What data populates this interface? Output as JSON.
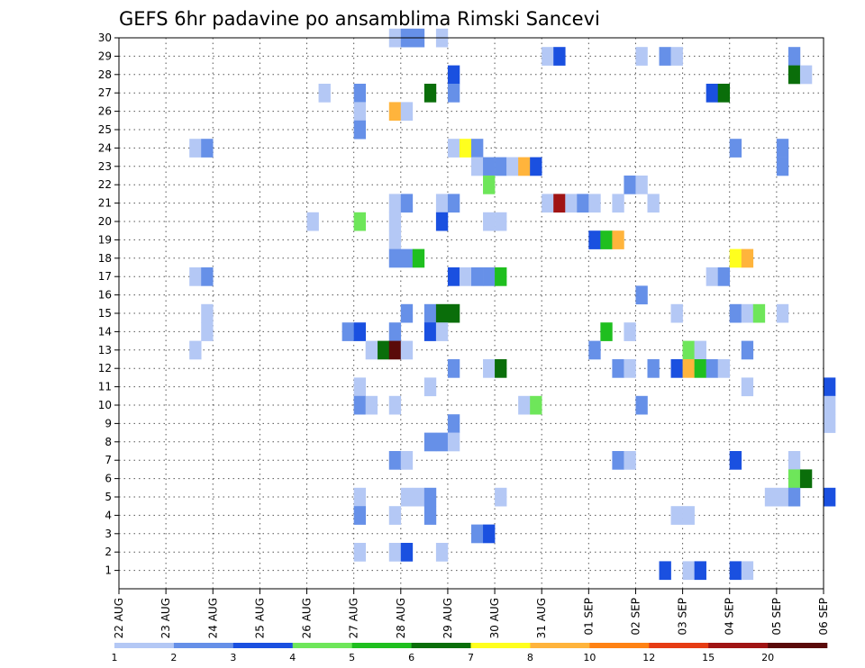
{
  "chart_data": {
    "type": "heatmap",
    "title": "GEFS 6hr padavine po ansamblima Rimski Sancevi",
    "y_ticks": [
      1,
      2,
      3,
      4,
      5,
      6,
      7,
      8,
      9,
      10,
      11,
      12,
      13,
      14,
      15,
      16,
      17,
      18,
      19,
      20,
      21,
      22,
      23,
      24,
      25,
      26,
      27,
      28,
      29,
      30
    ],
    "y_range": [
      0,
      30
    ],
    "x_ticks": [
      "22 AUG",
      "23 AUG",
      "24 AUG",
      "25 AUG",
      "26 AUG",
      "27 AUG",
      "28 AUG",
      "29 AUG",
      "30 AUG",
      "31 AUG",
      "01 SEP",
      "02 SEP",
      "03 SEP",
      "04 SEP",
      "05 SEP",
      "06 SEP"
    ],
    "x_range_days": [
      0,
      15
    ],
    "steps_per_day": 4,
    "grid": true,
    "legend_position": "bottom",
    "legend_labels": [
      "1",
      "2",
      "3",
      "4",
      "5",
      "6",
      "7",
      "8",
      "10",
      "12",
      "15",
      "20"
    ],
    "legend_colors": [
      "#b4c8f5",
      "#6690e8",
      "#1a50e0",
      "#6ee65a",
      "#1fbf1f",
      "#0a6e0a",
      "#ffff1e",
      "#ffb43c",
      "#ff8214",
      "#e63c14",
      "#a01414",
      "#5a0a0a"
    ],
    "cells": [
      {
        "x": "27 AUG 18Z",
        "y": 30,
        "v": 1
      },
      {
        "x": "28 AUG 00Z",
        "y": 30,
        "v": 2
      },
      {
        "x": "28 AUG 06Z",
        "y": 30,
        "v": 2
      },
      {
        "x": "28 AUG 18Z",
        "y": 30,
        "v": 1
      },
      {
        "x": "31 AUG 00Z",
        "y": 29,
        "v": 1
      },
      {
        "x": "31 AUG 06Z",
        "y": 29,
        "v": 3
      },
      {
        "x": "02 SEP 00Z",
        "y": 29,
        "v": 1
      },
      {
        "x": "02 SEP 12Z",
        "y": 29,
        "v": 2
      },
      {
        "x": "02 SEP 18Z",
        "y": 29,
        "v": 1
      },
      {
        "x": "05 SEP 06Z",
        "y": 29,
        "v": 2
      },
      {
        "x": "29 AUG 00Z",
        "y": 28,
        "v": 3
      },
      {
        "x": "05 SEP 06Z",
        "y": 28,
        "v": 6
      },
      {
        "x": "05 SEP 12Z",
        "y": 28,
        "v": 1
      },
      {
        "x": "26 AUG 06Z",
        "y": 27,
        "v": 1
      },
      {
        "x": "27 AUG 00Z",
        "y": 27,
        "v": 2
      },
      {
        "x": "28 AUG 12Z",
        "y": 27,
        "v": 6
      },
      {
        "x": "29 AUG 00Z",
        "y": 27,
        "v": 2
      },
      {
        "x": "03 SEP 12Z",
        "y": 27,
        "v": 3
      },
      {
        "x": "03 SEP 18Z",
        "y": 27,
        "v": 6
      },
      {
        "x": "27 AUG 00Z",
        "y": 26,
        "v": 1
      },
      {
        "x": "27 AUG 18Z",
        "y": 26,
        "v": 8
      },
      {
        "x": "28 AUG 00Z",
        "y": 26,
        "v": 1
      },
      {
        "x": "27 AUG 00Z",
        "y": 25,
        "v": 2
      },
      {
        "x": "23 AUG 12Z",
        "y": 24,
        "v": 1
      },
      {
        "x": "23 AUG 18Z",
        "y": 24,
        "v": 2
      },
      {
        "x": "29 AUG 00Z",
        "y": 24,
        "v": 1
      },
      {
        "x": "29 AUG 06Z",
        "y": 24,
        "v": 7
      },
      {
        "x": "29 AUG 12Z",
        "y": 24,
        "v": 2
      },
      {
        "x": "04 SEP 00Z",
        "y": 24,
        "v": 2
      },
      {
        "x": "05 SEP 00Z",
        "y": 24,
        "v": 2
      },
      {
        "x": "29 AUG 12Z",
        "y": 23,
        "v": 1
      },
      {
        "x": "29 AUG 18Z",
        "y": 23,
        "v": 2
      },
      {
        "x": "30 AUG 00Z",
        "y": 23,
        "v": 2
      },
      {
        "x": "30 AUG 06Z",
        "y": 23,
        "v": 1
      },
      {
        "x": "30 AUG 12Z",
        "y": 23,
        "v": 8
      },
      {
        "x": "30 AUG 18Z",
        "y": 23,
        "v": 3
      },
      {
        "x": "05 SEP 00Z",
        "y": 23,
        "v": 2
      },
      {
        "x": "29 AUG 18Z",
        "y": 22,
        "v": 4
      },
      {
        "x": "01 SEP 18Z",
        "y": 22,
        "v": 2
      },
      {
        "x": "02 SEP 00Z",
        "y": 22,
        "v": 1
      },
      {
        "x": "27 AUG 18Z",
        "y": 21,
        "v": 1
      },
      {
        "x": "28 AUG 00Z",
        "y": 21,
        "v": 2
      },
      {
        "x": "28 AUG 18Z",
        "y": 21,
        "v": 1
      },
      {
        "x": "29 AUG 00Z",
        "y": 21,
        "v": 2
      },
      {
        "x": "31 AUG 00Z",
        "y": 21,
        "v": 1
      },
      {
        "x": "31 AUG 06Z",
        "y": 21,
        "v": 15
      },
      {
        "x": "31 AUG 12Z",
        "y": 21,
        "v": 1
      },
      {
        "x": "31 AUG 18Z",
        "y": 21,
        "v": 2
      },
      {
        "x": "01 SEP 00Z",
        "y": 21,
        "v": 1
      },
      {
        "x": "01 SEP 12Z",
        "y": 21,
        "v": 1
      },
      {
        "x": "02 SEP 06Z",
        "y": 21,
        "v": 1
      },
      {
        "x": "26 AUG 00Z",
        "y": 20,
        "v": 1
      },
      {
        "x": "27 AUG 00Z",
        "y": 20,
        "v": 4
      },
      {
        "x": "27 AUG 18Z",
        "y": 20,
        "v": 1
      },
      {
        "x": "28 AUG 18Z",
        "y": 20,
        "v": 3
      },
      {
        "x": "29 AUG 18Z",
        "y": 20,
        "v": 1
      },
      {
        "x": "30 AUG 00Z",
        "y": 20,
        "v": 1
      },
      {
        "x": "27 AUG 18Z",
        "y": 19,
        "v": 1
      },
      {
        "x": "01 SEP 00Z",
        "y": 19,
        "v": 3
      },
      {
        "x": "01 SEP 06Z",
        "y": 19,
        "v": 5
      },
      {
        "x": "01 SEP 12Z",
        "y": 19,
        "v": 8
      },
      {
        "x": "27 AUG 18Z",
        "y": 18,
        "v": 2
      },
      {
        "x": "28 AUG 00Z",
        "y": 18,
        "v": 2
      },
      {
        "x": "28 AUG 06Z",
        "y": 18,
        "v": 5
      },
      {
        "x": "04 SEP 00Z",
        "y": 18,
        "v": 7
      },
      {
        "x": "04 SEP 06Z",
        "y": 18,
        "v": 8
      },
      {
        "x": "23 AUG 12Z",
        "y": 17,
        "v": 1
      },
      {
        "x": "23 AUG 18Z",
        "y": 17,
        "v": 2
      },
      {
        "x": "29 AUG 00Z",
        "y": 17,
        "v": 3
      },
      {
        "x": "29 AUG 06Z",
        "y": 17,
        "v": 1
      },
      {
        "x": "29 AUG 12Z",
        "y": 17,
        "v": 2
      },
      {
        "x": "29 AUG 18Z",
        "y": 17,
        "v": 2
      },
      {
        "x": "30 AUG 00Z",
        "y": 17,
        "v": 5
      },
      {
        "x": "03 SEP 12Z",
        "y": 17,
        "v": 1
      },
      {
        "x": "03 SEP 18Z",
        "y": 17,
        "v": 2
      },
      {
        "x": "02 SEP 00Z",
        "y": 16,
        "v": 2
      },
      {
        "x": "23 AUG 18Z",
        "y": 15,
        "v": 1
      },
      {
        "x": "28 AUG 00Z",
        "y": 15,
        "v": 2
      },
      {
        "x": "28 AUG 12Z",
        "y": 15,
        "v": 2
      },
      {
        "x": "28 AUG 18Z",
        "y": 15,
        "v": 6
      },
      {
        "x": "29 AUG 00Z",
        "y": 15,
        "v": 6
      },
      {
        "x": "02 SEP 18Z",
        "y": 15,
        "v": 1
      },
      {
        "x": "04 SEP 00Z",
        "y": 15,
        "v": 2
      },
      {
        "x": "04 SEP 06Z",
        "y": 15,
        "v": 1
      },
      {
        "x": "04 SEP 12Z",
        "y": 15,
        "v": 4
      },
      {
        "x": "05 SEP 00Z",
        "y": 15,
        "v": 1
      },
      {
        "x": "23 AUG 18Z",
        "y": 14,
        "v": 1
      },
      {
        "x": "26 AUG 18Z",
        "y": 14,
        "v": 2
      },
      {
        "x": "27 AUG 00Z",
        "y": 14,
        "v": 3
      },
      {
        "x": "27 AUG 18Z",
        "y": 14,
        "v": 2
      },
      {
        "x": "28 AUG 12Z",
        "y": 14,
        "v": 3
      },
      {
        "x": "28 AUG 18Z",
        "y": 14,
        "v": 1
      },
      {
        "x": "01 SEP 06Z",
        "y": 14,
        "v": 5
      },
      {
        "x": "01 SEP 18Z",
        "y": 14,
        "v": 1
      },
      {
        "x": "23 AUG 12Z",
        "y": 13,
        "v": 1
      },
      {
        "x": "27 AUG 12Z",
        "y": 13,
        "v": 6
      },
      {
        "x": "27 AUG 18Z",
        "y": 13,
        "v": 20
      },
      {
        "x": "28 AUG 00Z",
        "y": 13,
        "v": 1
      },
      {
        "x": "27 AUG 06Z",
        "y": 13,
        "v": 1
      },
      {
        "x": "01 SEP 00Z",
        "y": 13,
        "v": 2
      },
      {
        "x": "03 SEP 00Z",
        "y": 13,
        "v": 4
      },
      {
        "x": "03 SEP 06Z",
        "y": 13,
        "v": 1
      },
      {
        "x": "04 SEP 06Z",
        "y": 13,
        "v": 2
      },
      {
        "x": "29 AUG 00Z",
        "y": 12,
        "v": 2
      },
      {
        "x": "29 AUG 18Z",
        "y": 12,
        "v": 1
      },
      {
        "x": "30 AUG 00Z",
        "y": 12,
        "v": 6
      },
      {
        "x": "01 SEP 12Z",
        "y": 12,
        "v": 2
      },
      {
        "x": "01 SEP 18Z",
        "y": 12,
        "v": 1
      },
      {
        "x": "02 SEP 06Z",
        "y": 12,
        "v": 2
      },
      {
        "x": "02 SEP 18Z",
        "y": 12,
        "v": 3
      },
      {
        "x": "03 SEP 00Z",
        "y": 12,
        "v": 8
      },
      {
        "x": "03 SEP 06Z",
        "y": 12,
        "v": 5
      },
      {
        "x": "03 SEP 12Z",
        "y": 12,
        "v": 2
      },
      {
        "x": "03 SEP 18Z",
        "y": 12,
        "v": 1
      },
      {
        "x": "27 AUG 00Z",
        "y": 11,
        "v": 1
      },
      {
        "x": "28 AUG 12Z",
        "y": 11,
        "v": 1
      },
      {
        "x": "04 SEP 06Z",
        "y": 11,
        "v": 1
      },
      {
        "x": "06 SEP 00Z",
        "y": 11,
        "v": 3
      },
      {
        "x": "27 AUG 00Z",
        "y": 10,
        "v": 2
      },
      {
        "x": "27 AUG 06Z",
        "y": 10,
        "v": 1
      },
      {
        "x": "27 AUG 18Z",
        "y": 10,
        "v": 1
      },
      {
        "x": "30 AUG 12Z",
        "y": 10,
        "v": 1
      },
      {
        "x": "30 AUG 18Z",
        "y": 10,
        "v": 4
      },
      {
        "x": "02 SEP 00Z",
        "y": 10,
        "v": 2
      },
      {
        "x": "06 SEP 00Z",
        "y": 10,
        "v": 1
      },
      {
        "x": "29 AUG 00Z",
        "y": 9,
        "v": 2
      },
      {
        "x": "06 SEP 00Z",
        "y": 9,
        "v": 1
      },
      {
        "x": "28 AUG 12Z",
        "y": 8,
        "v": 2
      },
      {
        "x": "28 AUG 18Z",
        "y": 8,
        "v": 2
      },
      {
        "x": "29 AUG 00Z",
        "y": 8,
        "v": 1
      },
      {
        "x": "27 AUG 18Z",
        "y": 7,
        "v": 2
      },
      {
        "x": "28 AUG 00Z",
        "y": 7,
        "v": 1
      },
      {
        "x": "01 SEP 12Z",
        "y": 7,
        "v": 2
      },
      {
        "x": "01 SEP 18Z",
        "y": 7,
        "v": 1
      },
      {
        "x": "04 SEP 00Z",
        "y": 7,
        "v": 3
      },
      {
        "x": "05 SEP 06Z",
        "y": 7,
        "v": 1
      },
      {
        "x": "05 SEP 06Z",
        "y": 6,
        "v": 4
      },
      {
        "x": "05 SEP 12Z",
        "y": 6,
        "v": 6
      },
      {
        "x": "27 AUG 00Z",
        "y": 5,
        "v": 1
      },
      {
        "x": "28 AUG 00Z",
        "y": 5,
        "v": 1
      },
      {
        "x": "28 AUG 06Z",
        "y": 5,
        "v": 1
      },
      {
        "x": "28 AUG 12Z",
        "y": 5,
        "v": 2
      },
      {
        "x": "30 AUG 00Z",
        "y": 5,
        "v": 1
      },
      {
        "x": "04 SEP 18Z",
        "y": 5,
        "v": 1
      },
      {
        "x": "05 SEP 00Z",
        "y": 5,
        "v": 1
      },
      {
        "x": "05 SEP 06Z",
        "y": 5,
        "v": 2
      },
      {
        "x": "06 SEP 00Z",
        "y": 5,
        "v": 3
      },
      {
        "x": "27 AUG 00Z",
        "y": 4,
        "v": 2
      },
      {
        "x": "27 AUG 18Z",
        "y": 4,
        "v": 1
      },
      {
        "x": "28 AUG 12Z",
        "y": 4,
        "v": 2
      },
      {
        "x": "02 SEP 18Z",
        "y": 4,
        "v": 1
      },
      {
        "x": "03 SEP 00Z",
        "y": 4,
        "v": 1
      },
      {
        "x": "29 AUG 12Z",
        "y": 3,
        "v": 2
      },
      {
        "x": "29 AUG 18Z",
        "y": 3,
        "v": 3
      },
      {
        "x": "27 AUG 00Z",
        "y": 2,
        "v": 1
      },
      {
        "x": "27 AUG 18Z",
        "y": 2,
        "v": 1
      },
      {
        "x": "28 AUG 00Z",
        "y": 2,
        "v": 3
      },
      {
        "x": "28 AUG 18Z",
        "y": 2,
        "v": 1
      },
      {
        "x": "02 SEP 12Z",
        "y": 1,
        "v": 3
      },
      {
        "x": "03 SEP 00Z",
        "y": 1,
        "v": 1
      },
      {
        "x": "03 SEP 06Z",
        "y": 1,
        "v": 3
      },
      {
        "x": "04 SEP 00Z",
        "y": 1,
        "v": 3
      },
      {
        "x": "04 SEP 06Z",
        "y": 1,
        "v": 1
      }
    ]
  }
}
